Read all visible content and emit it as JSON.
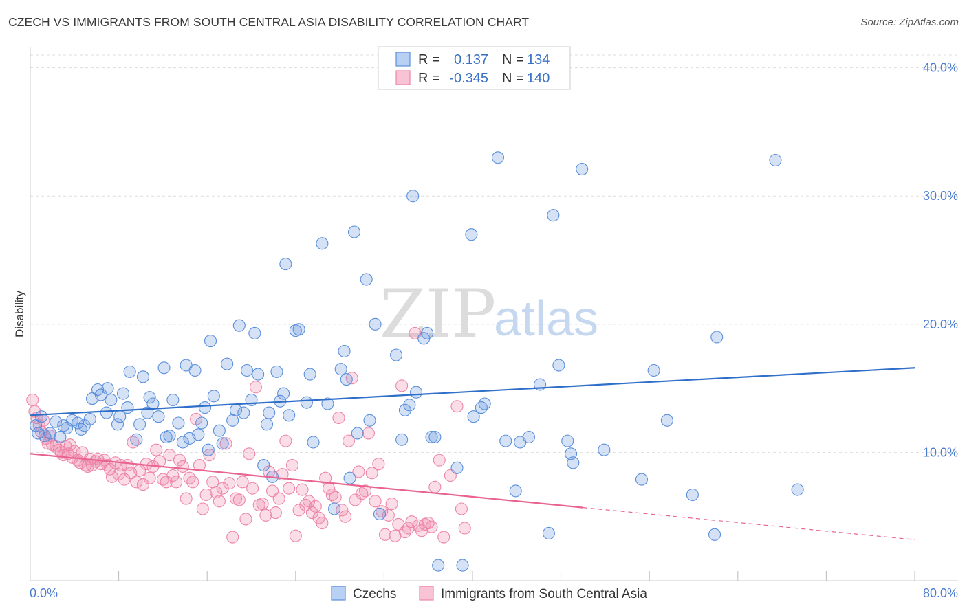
{
  "title": "CZECH VS IMMIGRANTS FROM SOUTH CENTRAL ASIA DISABILITY CORRELATION CHART",
  "source": "Source: ZipAtlas.com",
  "watermark": {
    "zip": "ZIP",
    "atlas": "atlas"
  },
  "legend": {
    "rows": [
      {
        "r_label": "R =",
        "r_value": "0.137",
        "n_label": "N =",
        "n_value": "134"
      },
      {
        "r_label": "R =",
        "r_value": "-0.345",
        "n_label": "N =",
        "n_value": "140"
      }
    ]
  },
  "chart_data": {
    "type": "scatter",
    "title": "CZECH VS IMMIGRANTS FROM SOUTH CENTRAL ASIA DISABILITY CORRELATION CHART",
    "xlabel": "",
    "ylabel": "Disability",
    "xlim": [
      0,
      80
    ],
    "ylim": [
      0,
      41
    ],
    "x_tick_labels": [
      "0.0%",
      "80.0%"
    ],
    "y_ticks": [
      10,
      20,
      30,
      40
    ],
    "y_tick_labels": [
      "10.0%",
      "20.0%",
      "30.0%",
      "40.0%"
    ],
    "grid": true,
    "colors": {
      "czechs": "#5b8fdc",
      "immigrants": "#ee86a8",
      "czechs_line": "#2f6fc9",
      "immigrants_line": "#e8648f"
    },
    "series": [
      {
        "name": "Czechs",
        "r": 0.137,
        "n": 134,
        "trend": {
          "x0": 0,
          "y0": 12.9,
          "x1": 80,
          "y1": 16.6
        },
        "points": [
          [
            0.5,
            12.1
          ],
          [
            0.7,
            11.5
          ],
          [
            1.0,
            12.8
          ],
          [
            1.3,
            11.3
          ],
          [
            1.8,
            11.5
          ],
          [
            2.3,
            12.4
          ],
          [
            2.7,
            11.2
          ],
          [
            3.0,
            12.1
          ],
          [
            3.3,
            11.9
          ],
          [
            3.8,
            12.5
          ],
          [
            4.3,
            12.3
          ],
          [
            4.6,
            11.8
          ],
          [
            4.9,
            12.1
          ],
          [
            5.4,
            12.6
          ],
          [
            5.6,
            14.2
          ],
          [
            6.1,
            14.9
          ],
          [
            6.4,
            14.5
          ],
          [
            6.9,
            13.1
          ],
          [
            7.0,
            15.0
          ],
          [
            7.3,
            14.1
          ],
          [
            7.9,
            12.2
          ],
          [
            8.1,
            12.8
          ],
          [
            8.4,
            14.6
          ],
          [
            8.8,
            13.5
          ],
          [
            9.0,
            16.3
          ],
          [
            9.6,
            11.0
          ],
          [
            9.9,
            12.2
          ],
          [
            10.2,
            15.9
          ],
          [
            10.6,
            13.1
          ],
          [
            10.8,
            14.3
          ],
          [
            11.1,
            13.8
          ],
          [
            11.6,
            12.8
          ],
          [
            12.1,
            16.6
          ],
          [
            12.3,
            11.2
          ],
          [
            12.6,
            11.3
          ],
          [
            12.9,
            14.1
          ],
          [
            13.4,
            12.3
          ],
          [
            13.8,
            10.8
          ],
          [
            14.1,
            16.8
          ],
          [
            14.4,
            11.1
          ],
          [
            14.9,
            16.4
          ],
          [
            15.2,
            11.4
          ],
          [
            15.5,
            12.3
          ],
          [
            15.8,
            13.5
          ],
          [
            16.1,
            10.2
          ],
          [
            16.3,
            18.7
          ],
          [
            16.6,
            14.4
          ],
          [
            17.1,
            11.7
          ],
          [
            17.4,
            10.7
          ],
          [
            17.8,
            16.9
          ],
          [
            18.3,
            12.5
          ],
          [
            18.6,
            13.3
          ],
          [
            18.9,
            19.9
          ],
          [
            19.3,
            13.1
          ],
          [
            19.6,
            16.4
          ],
          [
            20.0,
            14.1
          ],
          [
            20.3,
            19.3
          ],
          [
            20.6,
            16.1
          ],
          [
            21.1,
            9.0
          ],
          [
            21.4,
            12.2
          ],
          [
            21.6,
            13.1
          ],
          [
            21.9,
            8.1
          ],
          [
            22.3,
            16.3
          ],
          [
            22.6,
            14.0
          ],
          [
            22.9,
            14.6
          ],
          [
            23.1,
            24.7
          ],
          [
            23.4,
            12.9
          ],
          [
            24.0,
            19.5
          ],
          [
            24.3,
            19.6
          ],
          [
            25.0,
            13.9
          ],
          [
            25.3,
            16.1
          ],
          [
            25.6,
            10.8
          ],
          [
            26.4,
            26.3
          ],
          [
            26.9,
            13.8
          ],
          [
            27.5,
            5.6
          ],
          [
            28.1,
            16.5
          ],
          [
            28.4,
            17.9
          ],
          [
            28.6,
            15.7
          ],
          [
            28.9,
            8.0
          ],
          [
            29.3,
            27.2
          ],
          [
            29.6,
            11.5
          ],
          [
            30.4,
            23.5
          ],
          [
            30.7,
            12.5
          ],
          [
            31.2,
            20.0
          ],
          [
            31.6,
            5.2
          ],
          [
            33.1,
            17.6
          ],
          [
            33.6,
            11.0
          ],
          [
            33.9,
            13.3
          ],
          [
            34.3,
            13.7
          ],
          [
            34.6,
            30.0
          ],
          [
            34.9,
            14.7
          ],
          [
            35.6,
            18.9
          ],
          [
            35.9,
            19.3
          ],
          [
            36.3,
            11.2
          ],
          [
            36.6,
            11.2
          ],
          [
            36.9,
            1.2
          ],
          [
            38.6,
            8.8
          ],
          [
            39.1,
            1.2
          ],
          [
            39.9,
            27.0
          ],
          [
            40.1,
            12.8
          ],
          [
            40.8,
            13.5
          ],
          [
            41.1,
            13.8
          ],
          [
            42.3,
            33.0
          ],
          [
            43.0,
            10.9
          ],
          [
            43.9,
            7.0
          ],
          [
            44.3,
            10.8
          ],
          [
            45.1,
            11.2
          ],
          [
            46.1,
            15.3
          ],
          [
            46.9,
            3.7
          ],
          [
            47.3,
            28.5
          ],
          [
            47.8,
            16.8
          ],
          [
            48.6,
            10.9
          ],
          [
            48.9,
            9.9
          ],
          [
            49.1,
            9.2
          ],
          [
            49.9,
            32.1
          ],
          [
            51.9,
            10.2
          ],
          [
            55.3,
            7.9
          ],
          [
            56.4,
            16.4
          ],
          [
            57.6,
            12.5
          ],
          [
            59.9,
            6.7
          ],
          [
            61.9,
            3.6
          ],
          [
            62.1,
            19.0
          ],
          [
            67.4,
            32.8
          ],
          [
            69.4,
            7.1
          ]
        ]
      },
      {
        "name": "Immigrants from South Central Asia",
        "r": -0.345,
        "n": 140,
        "trend": {
          "x0": 0,
          "y0": 9.9,
          "x1": 50,
          "y1": 5.7
        },
        "trend_dashed": {
          "x0": 50,
          "y0": 5.7,
          "x1": 80,
          "y1": 3.2
        },
        "points": [
          [
            0.2,
            14.1
          ],
          [
            0.4,
            13.2
          ],
          [
            0.6,
            12.7
          ],
          [
            0.8,
            12.1
          ],
          [
            1.0,
            11.6
          ],
          [
            1.2,
            12.5
          ],
          [
            1.4,
            11.1
          ],
          [
            1.6,
            10.7
          ],
          [
            1.8,
            11.3
          ],
          [
            2.0,
            10.6
          ],
          [
            2.3,
            10.5
          ],
          [
            2.6,
            10.2
          ],
          [
            2.8,
            10.0
          ],
          [
            3.0,
            9.8
          ],
          [
            3.2,
            10.5
          ],
          [
            3.4,
            9.9
          ],
          [
            3.6,
            10.6
          ],
          [
            3.8,
            9.6
          ],
          [
            4.0,
            10.1
          ],
          [
            4.3,
            9.4
          ],
          [
            4.5,
            9.2
          ],
          [
            4.7,
            10.0
          ],
          [
            5.0,
            9.0
          ],
          [
            5.2,
            8.9
          ],
          [
            5.4,
            9.5
          ],
          [
            5.6,
            9.0
          ],
          [
            5.9,
            9.3
          ],
          [
            6.1,
            9.5
          ],
          [
            6.4,
            9.1
          ],
          [
            6.7,
            9.4
          ],
          [
            7.0,
            9.0
          ],
          [
            7.2,
            8.7
          ],
          [
            7.4,
            8.1
          ],
          [
            7.7,
            9.2
          ],
          [
            8.0,
            8.3
          ],
          [
            8.2,
            9.0
          ],
          [
            8.5,
            7.9
          ],
          [
            8.8,
            9.0
          ],
          [
            9.1,
            8.4
          ],
          [
            9.3,
            10.8
          ],
          [
            9.6,
            7.7
          ],
          [
            9.9,
            8.6
          ],
          [
            10.2,
            7.5
          ],
          [
            10.5,
            9.1
          ],
          [
            10.8,
            8.0
          ],
          [
            11.1,
            8.9
          ],
          [
            11.4,
            10.2
          ],
          [
            11.7,
            9.3
          ],
          [
            12.0,
            7.9
          ],
          [
            12.3,
            7.7
          ],
          [
            12.6,
            9.8
          ],
          [
            12.9,
            8.2
          ],
          [
            13.2,
            7.7
          ],
          [
            13.5,
            9.4
          ],
          [
            13.8,
            8.9
          ],
          [
            14.1,
            6.4
          ],
          [
            14.4,
            8.0
          ],
          [
            14.7,
            7.7
          ],
          [
            15.0,
            12.6
          ],
          [
            15.3,
            9.0
          ],
          [
            15.6,
            5.6
          ],
          [
            15.9,
            6.7
          ],
          [
            16.2,
            9.8
          ],
          [
            16.5,
            7.7
          ],
          [
            16.8,
            6.9
          ],
          [
            17.1,
            6.2
          ],
          [
            17.4,
            7.2
          ],
          [
            17.7,
            10.7
          ],
          [
            18.0,
            7.6
          ],
          [
            18.3,
            3.4
          ],
          [
            18.6,
            6.4
          ],
          [
            18.9,
            6.3
          ],
          [
            19.2,
            7.7
          ],
          [
            19.5,
            4.8
          ],
          [
            19.8,
            9.9
          ],
          [
            20.1,
            7.2
          ],
          [
            20.4,
            15.1
          ],
          [
            20.7,
            5.9
          ],
          [
            21.0,
            6.0
          ],
          [
            21.3,
            5.1
          ],
          [
            21.6,
            8.5
          ],
          [
            21.9,
            7.0
          ],
          [
            22.2,
            5.3
          ],
          [
            22.5,
            6.4
          ],
          [
            22.8,
            8.3
          ],
          [
            23.1,
            10.9
          ],
          [
            23.4,
            7.2
          ],
          [
            23.7,
            9.0
          ],
          [
            24.0,
            3.5
          ],
          [
            24.3,
            5.5
          ],
          [
            24.6,
            7.1
          ],
          [
            24.9,
            5.9
          ],
          [
            25.2,
            6.2
          ],
          [
            25.5,
            5.3
          ],
          [
            25.8,
            5.8
          ],
          [
            26.1,
            4.9
          ],
          [
            26.4,
            4.5
          ],
          [
            26.7,
            8.0
          ],
          [
            27.0,
            7.2
          ],
          [
            27.3,
            6.7
          ],
          [
            27.6,
            6.5
          ],
          [
            27.9,
            12.7
          ],
          [
            28.2,
            5.5
          ],
          [
            28.5,
            5.0
          ],
          [
            28.8,
            10.9
          ],
          [
            29.1,
            15.8
          ],
          [
            29.4,
            6.3
          ],
          [
            29.7,
            8.5
          ],
          [
            30.0,
            6.8
          ],
          [
            30.3,
            7.0
          ],
          [
            30.6,
            11.5
          ],
          [
            30.9,
            8.4
          ],
          [
            31.2,
            6.2
          ],
          [
            31.5,
            9.1
          ],
          [
            31.8,
            5.4
          ],
          [
            32.1,
            3.6
          ],
          [
            32.4,
            5.1
          ],
          [
            32.7,
            6.0
          ],
          [
            33.0,
            3.5
          ],
          [
            33.3,
            4.4
          ],
          [
            33.6,
            15.2
          ],
          [
            33.9,
            3.8
          ],
          [
            34.2,
            4.1
          ],
          [
            34.5,
            4.6
          ],
          [
            34.8,
            19.3
          ],
          [
            35.1,
            4.3
          ],
          [
            35.4,
            3.9
          ],
          [
            35.7,
            4.4
          ],
          [
            36.0,
            4.5
          ],
          [
            36.3,
            4.2
          ],
          [
            36.6,
            7.3
          ],
          [
            37.0,
            9.4
          ],
          [
            37.4,
            3.4
          ],
          [
            38.0,
            8.2
          ],
          [
            38.6,
            13.6
          ],
          [
            39.0,
            5.6
          ],
          [
            39.3,
            4.1
          ]
        ]
      }
    ]
  },
  "bottom_legend": [
    "Czechs",
    "Immigrants from South Central Asia"
  ]
}
